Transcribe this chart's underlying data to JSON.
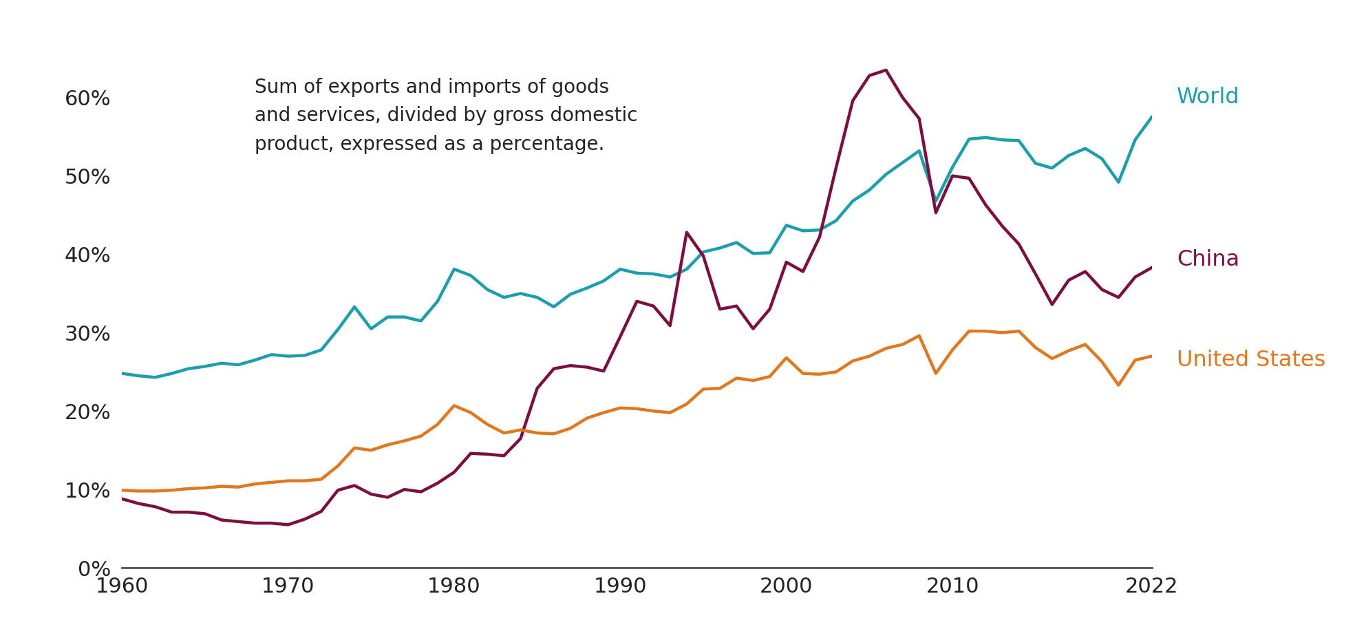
{
  "annotation": "Sum of exports and imports of goods\nand services, divided by gross domestic\nproduct, expressed as a percentage.",
  "annotation_fontsize": 20,
  "world_color": "#1E9EAD",
  "china_color": "#7B1040",
  "us_color": "#E07820",
  "line_width": 3.2,
  "ylim": [
    0,
    0.7
  ],
  "yticks": [
    0.0,
    0.1,
    0.2,
    0.3,
    0.4,
    0.5,
    0.6
  ],
  "ytick_labels": [
    "0%",
    "10%",
    "20%",
    "30%",
    "40%",
    "50%",
    "60%"
  ],
  "xticks": [
    1960,
    1970,
    1980,
    1990,
    2000,
    2010,
    2022
  ],
  "world": {
    "years": [
      1960,
      1961,
      1962,
      1963,
      1964,
      1965,
      1966,
      1967,
      1968,
      1969,
      1970,
      1971,
      1972,
      1973,
      1974,
      1975,
      1976,
      1977,
      1978,
      1979,
      1980,
      1981,
      1982,
      1983,
      1984,
      1985,
      1986,
      1987,
      1988,
      1989,
      1990,
      1991,
      1992,
      1993,
      1994,
      1995,
      1996,
      1997,
      1998,
      1999,
      2000,
      2001,
      2002,
      2003,
      2004,
      2005,
      2006,
      2007,
      2008,
      2009,
      2010,
      2011,
      2012,
      2013,
      2014,
      2015,
      2016,
      2017,
      2018,
      2019,
      2020,
      2021,
      2022
    ],
    "values": [
      0.248,
      0.245,
      0.243,
      0.248,
      0.254,
      0.257,
      0.261,
      0.259,
      0.265,
      0.272,
      0.27,
      0.271,
      0.278,
      0.304,
      0.333,
      0.305,
      0.32,
      0.32,
      0.315,
      0.34,
      0.381,
      0.373,
      0.355,
      0.345,
      0.35,
      0.345,
      0.333,
      0.349,
      0.357,
      0.366,
      0.381,
      0.376,
      0.375,
      0.371,
      0.381,
      0.403,
      0.408,
      0.415,
      0.401,
      0.402,
      0.437,
      0.43,
      0.431,
      0.443,
      0.468,
      0.482,
      0.502,
      0.517,
      0.532,
      0.468,
      0.511,
      0.547,
      0.549,
      0.546,
      0.545,
      0.516,
      0.51,
      0.526,
      0.535,
      0.522,
      0.492,
      0.546,
      0.575
    ]
  },
  "china": {
    "years": [
      1960,
      1961,
      1962,
      1963,
      1964,
      1965,
      1966,
      1967,
      1968,
      1969,
      1970,
      1971,
      1972,
      1973,
      1974,
      1975,
      1976,
      1977,
      1978,
      1979,
      1980,
      1981,
      1982,
      1983,
      1984,
      1985,
      1986,
      1987,
      1988,
      1989,
      1990,
      1991,
      1992,
      1993,
      1994,
      1995,
      1996,
      1997,
      1998,
      1999,
      2000,
      2001,
      2002,
      2003,
      2004,
      2005,
      2006,
      2007,
      2008,
      2009,
      2010,
      2011,
      2012,
      2013,
      2014,
      2015,
      2016,
      2017,
      2018,
      2019,
      2020,
      2021,
      2022
    ],
    "values": [
      0.088,
      0.082,
      0.078,
      0.071,
      0.071,
      0.069,
      0.061,
      0.059,
      0.057,
      0.057,
      0.055,
      0.062,
      0.072,
      0.099,
      0.105,
      0.094,
      0.09,
      0.1,
      0.097,
      0.108,
      0.122,
      0.146,
      0.145,
      0.143,
      0.165,
      0.229,
      0.254,
      0.258,
      0.256,
      0.251,
      0.295,
      0.34,
      0.334,
      0.309,
      0.428,
      0.398,
      0.33,
      0.334,
      0.305,
      0.33,
      0.39,
      0.378,
      0.422,
      0.511,
      0.596,
      0.628,
      0.635,
      0.6,
      0.573,
      0.453,
      0.5,
      0.497,
      0.463,
      0.436,
      0.413,
      0.375,
      0.336,
      0.367,
      0.378,
      0.355,
      0.345,
      0.371,
      0.383
    ]
  },
  "us": {
    "years": [
      1960,
      1961,
      1962,
      1963,
      1964,
      1965,
      1966,
      1967,
      1968,
      1969,
      1970,
      1971,
      1972,
      1973,
      1974,
      1975,
      1976,
      1977,
      1978,
      1979,
      1980,
      1981,
      1982,
      1983,
      1984,
      1985,
      1986,
      1987,
      1988,
      1989,
      1990,
      1991,
      1992,
      1993,
      1994,
      1995,
      1996,
      1997,
      1998,
      1999,
      2000,
      2001,
      2002,
      2003,
      2004,
      2005,
      2006,
      2007,
      2008,
      2009,
      2010,
      2011,
      2012,
      2013,
      2014,
      2015,
      2016,
      2017,
      2018,
      2019,
      2020,
      2021,
      2022
    ],
    "values": [
      0.099,
      0.098,
      0.098,
      0.099,
      0.101,
      0.102,
      0.104,
      0.103,
      0.107,
      0.109,
      0.111,
      0.111,
      0.113,
      0.13,
      0.153,
      0.15,
      0.157,
      0.162,
      0.168,
      0.183,
      0.207,
      0.198,
      0.183,
      0.172,
      0.176,
      0.172,
      0.171,
      0.178,
      0.191,
      0.198,
      0.204,
      0.203,
      0.2,
      0.198,
      0.209,
      0.228,
      0.229,
      0.242,
      0.239,
      0.244,
      0.268,
      0.248,
      0.247,
      0.25,
      0.264,
      0.27,
      0.28,
      0.285,
      0.296,
      0.248,
      0.278,
      0.302,
      0.302,
      0.3,
      0.302,
      0.281,
      0.267,
      0.277,
      0.285,
      0.263,
      0.233,
      0.265,
      0.27
    ]
  },
  "label_world": "World",
  "label_china": "China",
  "label_us": "United States",
  "bg_color": "#ffffff",
  "tick_fontsize": 22,
  "label_fontsize": 23,
  "spine_color": "#555555"
}
